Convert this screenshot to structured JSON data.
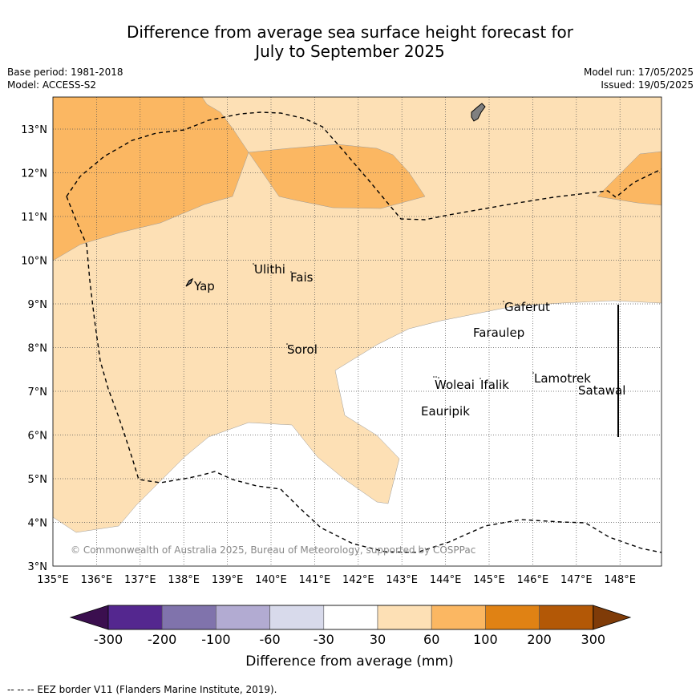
{
  "header": {
    "title_line1": "Difference from average sea surface height forecast for",
    "title_line2": "July to September 2025",
    "base_period": "Base period: 1981-2018",
    "model": "Model: ACCESS-S2",
    "model_run": "Model run: 17/05/2025",
    "issued": "Issued: 19/05/2025"
  },
  "map": {
    "lon_labels": [
      "135°E",
      "136°E",
      "137°E",
      "138°E",
      "139°E",
      "140°E",
      "141°E",
      "142°E",
      "143°E",
      "144°E",
      "145°E",
      "146°E",
      "147°E",
      "148°E"
    ],
    "lat_labels": [
      "3°N",
      "4°N",
      "5°N",
      "6°N",
      "7°N",
      "8°N",
      "9°N",
      "10°N",
      "11°N",
      "12°N",
      "13°N"
    ],
    "place_labels": [
      {
        "name": "Ulithi"
      },
      {
        "name": "Fais"
      },
      {
        "name": "Yap"
      },
      {
        "name": "Gaferut"
      },
      {
        "name": "Faraulep"
      },
      {
        "name": "Sorol"
      },
      {
        "name": "Woleai"
      },
      {
        "name": "Ifalik"
      },
      {
        "name": "Lamotrek"
      },
      {
        "name": "Satawal"
      },
      {
        "name": "Eauripik"
      }
    ],
    "copyright": "© Commonwealth of Australia 2025, Bureau of Meteorology, supported by COSPPac",
    "colors": {
      "band_30_60": "#fde0b5",
      "band_60_100": "#fbb762",
      "neutral": "#ffffff",
      "land": "#808080"
    }
  },
  "colorbar": {
    "tick_labels": [
      "-300",
      "-200",
      "-100",
      "-60",
      "-30",
      "30",
      "60",
      "100",
      "200",
      "300"
    ],
    "title": "Difference from average (mm)",
    "colors": [
      "#3b0f4f",
      "#54278f",
      "#8073ac",
      "#b2abd2",
      "#d8daeb",
      "#ffffff",
      "#fde0b5",
      "#fbb762",
      "#e08214",
      "#b35806",
      "#7f3b08"
    ]
  },
  "footer": {
    "eez_note": "--  --  -- EEZ border V11 (Flanders Marine Institute, 2019)."
  }
}
